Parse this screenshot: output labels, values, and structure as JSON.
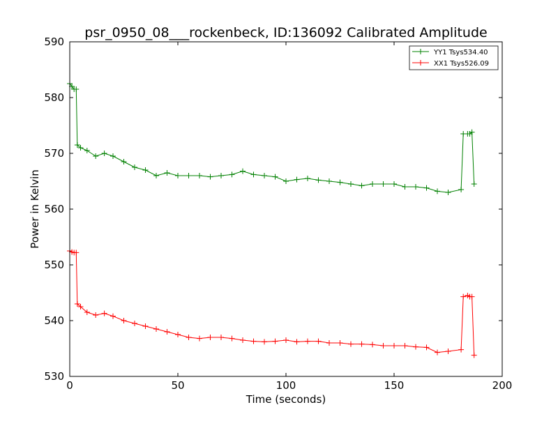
{
  "chart_data": {
    "type": "line",
    "title": "psr_0950_08___rockenbeck, ID:136092 Calibrated Amplitude",
    "xlabel": "Time (seconds)",
    "ylabel": "Power in Kelvin",
    "xlim": [
      0,
      200
    ],
    "ylim": [
      530,
      590
    ],
    "xticks": [
      0,
      50,
      100,
      150,
      200
    ],
    "yticks": [
      530,
      540,
      550,
      560,
      570,
      580,
      590
    ],
    "xtick_labels": [
      "0",
      "50",
      "100",
      "150",
      "200"
    ],
    "ytick_labels": [
      "530",
      "540",
      "550",
      "560",
      "570",
      "580",
      "590"
    ],
    "grid": false,
    "legend_position": "top-right",
    "marker": "plus",
    "series": [
      {
        "name": "YY1 Tsys534.40",
        "color": "#008000",
        "x": [
          0,
          1,
          2,
          3,
          3.5,
          5,
          8,
          12,
          16,
          20,
          25,
          30,
          35,
          40,
          45,
          50,
          55,
          60,
          65,
          70,
          75,
          80,
          85,
          90,
          95,
          100,
          105,
          110,
          115,
          120,
          125,
          130,
          135,
          140,
          145,
          150,
          155,
          160,
          165,
          170,
          175,
          181,
          182,
          184,
          185,
          186,
          187
        ],
        "values": [
          582.5,
          582,
          581.5,
          581.5,
          571.5,
          571,
          570.5,
          569.5,
          570,
          569.5,
          568.5,
          567.5,
          567,
          566,
          566.5,
          566,
          566,
          566,
          565.8,
          566,
          566.2,
          566.8,
          566.2,
          566,
          565.8,
          565,
          565.3,
          565.5,
          565.2,
          565,
          564.8,
          564.5,
          564.2,
          564.5,
          564.5,
          564.5,
          564,
          564,
          563.8,
          563.2,
          563,
          563.5,
          573.5,
          573.5,
          573.5,
          573.8,
          564.5
        ]
      },
      {
        "name": "XX1 Tsys526.09",
        "color": "#ff0000",
        "x": [
          0,
          1,
          2,
          3,
          3.5,
          5,
          8,
          12,
          16,
          20,
          25,
          30,
          35,
          40,
          45,
          50,
          55,
          60,
          65,
          70,
          75,
          80,
          85,
          90,
          95,
          100,
          105,
          110,
          115,
          120,
          125,
          130,
          135,
          140,
          145,
          150,
          155,
          160,
          165,
          170,
          175,
          181,
          182,
          184,
          185,
          186,
          187
        ],
        "values": [
          552.5,
          552.3,
          552.2,
          552.2,
          543,
          542.5,
          541.5,
          541,
          541.3,
          540.8,
          540,
          539.5,
          539,
          538.5,
          538,
          537.5,
          537,
          536.8,
          537,
          537,
          536.8,
          536.5,
          536.3,
          536.2,
          536.3,
          536.5,
          536.2,
          536.3,
          536.3,
          536,
          536,
          535.8,
          535.8,
          535.7,
          535.5,
          535.5,
          535.5,
          535.3,
          535.2,
          534.3,
          534.5,
          534.8,
          544.3,
          544.5,
          544.3,
          544.3,
          533.8
        ]
      }
    ]
  }
}
